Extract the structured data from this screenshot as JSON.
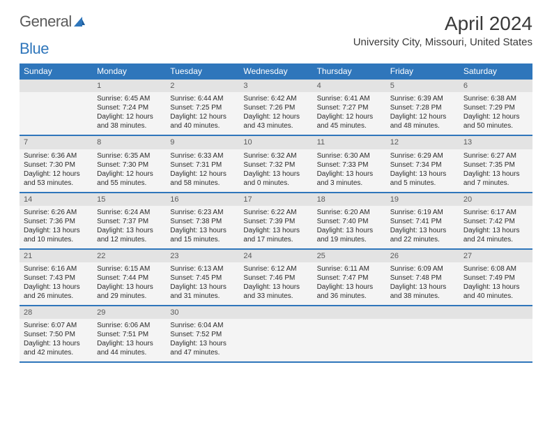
{
  "brand": {
    "part1": "General",
    "part2": "Blue"
  },
  "title": "April 2024",
  "location": "University City, Missouri, United States",
  "colors": {
    "header_bg": "#2f76bb",
    "header_text": "#ffffff",
    "daynum_bg": "#e3e3e3",
    "cell_bg": "#f4f4f4",
    "text": "#2b2b2b",
    "brand_gray": "#5a5a5a",
    "brand_blue": "#2f76bb"
  },
  "day_headers": [
    "Sunday",
    "Monday",
    "Tuesday",
    "Wednesday",
    "Thursday",
    "Friday",
    "Saturday"
  ],
  "weeks": [
    {
      "nums": [
        "",
        "1",
        "2",
        "3",
        "4",
        "5",
        "6"
      ],
      "cells": [
        "",
        "Sunrise: 6:45 AM\nSunset: 7:24 PM\nDaylight: 12 hours and 38 minutes.",
        "Sunrise: 6:44 AM\nSunset: 7:25 PM\nDaylight: 12 hours and 40 minutes.",
        "Sunrise: 6:42 AM\nSunset: 7:26 PM\nDaylight: 12 hours and 43 minutes.",
        "Sunrise: 6:41 AM\nSunset: 7:27 PM\nDaylight: 12 hours and 45 minutes.",
        "Sunrise: 6:39 AM\nSunset: 7:28 PM\nDaylight: 12 hours and 48 minutes.",
        "Sunrise: 6:38 AM\nSunset: 7:29 PM\nDaylight: 12 hours and 50 minutes."
      ]
    },
    {
      "nums": [
        "7",
        "8",
        "9",
        "10",
        "11",
        "12",
        "13"
      ],
      "cells": [
        "Sunrise: 6:36 AM\nSunset: 7:30 PM\nDaylight: 12 hours and 53 minutes.",
        "Sunrise: 6:35 AM\nSunset: 7:30 PM\nDaylight: 12 hours and 55 minutes.",
        "Sunrise: 6:33 AM\nSunset: 7:31 PM\nDaylight: 12 hours and 58 minutes.",
        "Sunrise: 6:32 AM\nSunset: 7:32 PM\nDaylight: 13 hours and 0 minutes.",
        "Sunrise: 6:30 AM\nSunset: 7:33 PM\nDaylight: 13 hours and 3 minutes.",
        "Sunrise: 6:29 AM\nSunset: 7:34 PM\nDaylight: 13 hours and 5 minutes.",
        "Sunrise: 6:27 AM\nSunset: 7:35 PM\nDaylight: 13 hours and 7 minutes."
      ]
    },
    {
      "nums": [
        "14",
        "15",
        "16",
        "17",
        "18",
        "19",
        "20"
      ],
      "cells": [
        "Sunrise: 6:26 AM\nSunset: 7:36 PM\nDaylight: 13 hours and 10 minutes.",
        "Sunrise: 6:24 AM\nSunset: 7:37 PM\nDaylight: 13 hours and 12 minutes.",
        "Sunrise: 6:23 AM\nSunset: 7:38 PM\nDaylight: 13 hours and 15 minutes.",
        "Sunrise: 6:22 AM\nSunset: 7:39 PM\nDaylight: 13 hours and 17 minutes.",
        "Sunrise: 6:20 AM\nSunset: 7:40 PM\nDaylight: 13 hours and 19 minutes.",
        "Sunrise: 6:19 AM\nSunset: 7:41 PM\nDaylight: 13 hours and 22 minutes.",
        "Sunrise: 6:17 AM\nSunset: 7:42 PM\nDaylight: 13 hours and 24 minutes."
      ]
    },
    {
      "nums": [
        "21",
        "22",
        "23",
        "24",
        "25",
        "26",
        "27"
      ],
      "cells": [
        "Sunrise: 6:16 AM\nSunset: 7:43 PM\nDaylight: 13 hours and 26 minutes.",
        "Sunrise: 6:15 AM\nSunset: 7:44 PM\nDaylight: 13 hours and 29 minutes.",
        "Sunrise: 6:13 AM\nSunset: 7:45 PM\nDaylight: 13 hours and 31 minutes.",
        "Sunrise: 6:12 AM\nSunset: 7:46 PM\nDaylight: 13 hours and 33 minutes.",
        "Sunrise: 6:11 AM\nSunset: 7:47 PM\nDaylight: 13 hours and 36 minutes.",
        "Sunrise: 6:09 AM\nSunset: 7:48 PM\nDaylight: 13 hours and 38 minutes.",
        "Sunrise: 6:08 AM\nSunset: 7:49 PM\nDaylight: 13 hours and 40 minutes."
      ]
    },
    {
      "nums": [
        "28",
        "29",
        "30",
        "",
        "",
        "",
        ""
      ],
      "cells": [
        "Sunrise: 6:07 AM\nSunset: 7:50 PM\nDaylight: 13 hours and 42 minutes.",
        "Sunrise: 6:06 AM\nSunset: 7:51 PM\nDaylight: 13 hours and 44 minutes.",
        "Sunrise: 6:04 AM\nSunset: 7:52 PM\nDaylight: 13 hours and 47 minutes.",
        "",
        "",
        "",
        ""
      ]
    }
  ]
}
